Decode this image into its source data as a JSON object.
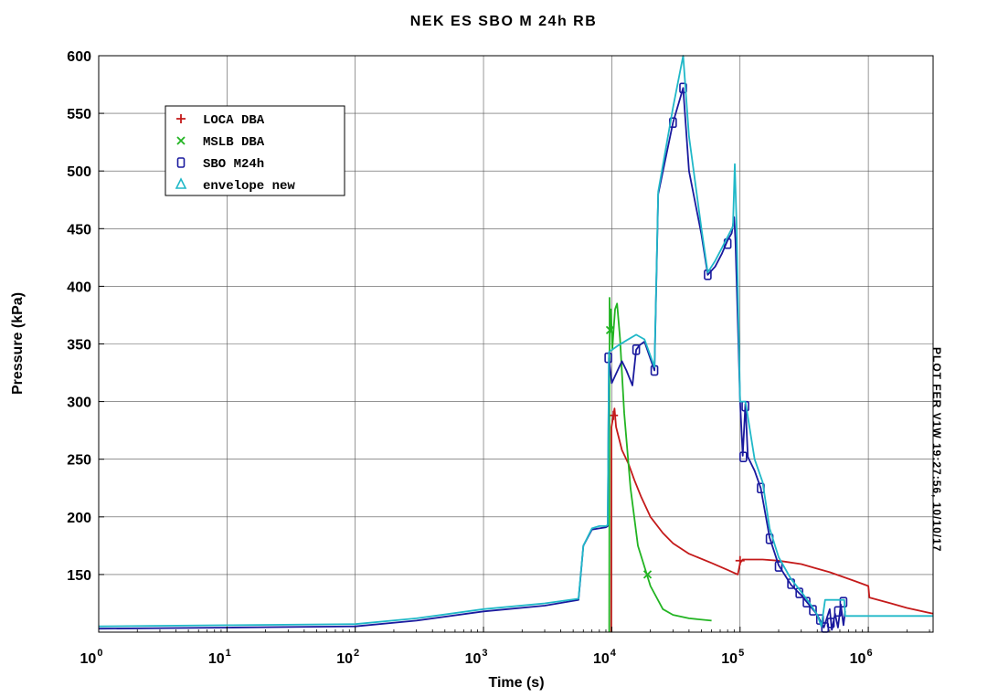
{
  "side_note": "PLOT FER V1W 19:27:56, 10/10/17",
  "chart_data": {
    "type": "line",
    "title": "NEK ES SBO M 24h RB",
    "xlabel": "Time (s)",
    "ylabel": "Pressure (kPa)",
    "xscale": "log",
    "xlim": [
      1,
      3200000
    ],
    "ylim": [
      100,
      600
    ],
    "x_tick_labels": [
      {
        "base": "10",
        "exp": "0",
        "value": 1
      },
      {
        "base": "10",
        "exp": "1",
        "value": 10
      },
      {
        "base": "10",
        "exp": "2",
        "value": 100
      },
      {
        "base": "10",
        "exp": "3",
        "value": 1000
      },
      {
        "base": "10",
        "exp": "4",
        "value": 10000
      },
      {
        "base": "10",
        "exp": "5",
        "value": 100000
      },
      {
        "base": "10",
        "exp": "6",
        "value": 1000000
      }
    ],
    "y_ticks": [
      150,
      200,
      250,
      300,
      350,
      400,
      450,
      500,
      550,
      600
    ],
    "grid": true,
    "legend_position": "top-left",
    "series": [
      {
        "name": "LOCA DBA",
        "color": "#c41a1a",
        "marker": "+",
        "points": [
          [
            9900,
            100
          ],
          [
            9950,
            278
          ],
          [
            10300,
            288
          ],
          [
            10500,
            294
          ],
          [
            10800,
            278
          ],
          [
            12000,
            258
          ],
          [
            13500,
            246
          ],
          [
            15000,
            232
          ],
          [
            17000,
            217
          ],
          [
            20000,
            200
          ],
          [
            25000,
            186
          ],
          [
            30000,
            177
          ],
          [
            40000,
            168
          ],
          [
            60000,
            160
          ],
          [
            80000,
            154
          ],
          [
            96000,
            150
          ],
          [
            100000,
            160
          ],
          [
            105000,
            163
          ],
          [
            150000,
            163
          ],
          [
            200000,
            162
          ],
          [
            300000,
            159
          ],
          [
            500000,
            152
          ],
          [
            800000,
            144
          ],
          [
            1000000,
            140
          ],
          [
            1020000,
            130
          ],
          [
            1500000,
            125
          ],
          [
            2000000,
            121
          ],
          [
            3200000,
            116
          ]
        ],
        "marker_points": [
          [
            10300,
            288
          ],
          [
            100000,
            162
          ]
        ]
      },
      {
        "name": "MSLB DBA",
        "color": "#22b422",
        "marker": "x",
        "points": [
          [
            9550,
            100
          ],
          [
            9620,
            390
          ],
          [
            9700,
            360
          ],
          [
            9850,
            380
          ],
          [
            10100,
            345
          ],
          [
            10300,
            360
          ],
          [
            10600,
            380
          ],
          [
            11000,
            385
          ],
          [
            11600,
            355
          ],
          [
            12500,
            290
          ],
          [
            14000,
            225
          ],
          [
            16000,
            175
          ],
          [
            20000,
            140
          ],
          [
            25000,
            120
          ],
          [
            30000,
            115
          ],
          [
            40000,
            112
          ],
          [
            60000,
            110
          ]
        ],
        "marker_points": [
          [
            9700,
            362
          ],
          [
            19000,
            150
          ]
        ]
      },
      {
        "name": "SBO M24h",
        "color": "#1a1a9e",
        "marker": "square",
        "points": [
          [
            1,
            103
          ],
          [
            10,
            104
          ],
          [
            100,
            105
          ],
          [
            300,
            110
          ],
          [
            1000,
            118
          ],
          [
            3000,
            123
          ],
          [
            5500,
            128
          ],
          [
            6000,
            175
          ],
          [
            7000,
            189
          ],
          [
            8000,
            190
          ],
          [
            9000,
            191
          ],
          [
            9300,
            192
          ],
          [
            9500,
            338
          ],
          [
            10000,
            316
          ],
          [
            11000,
            326
          ],
          [
            12000,
            335
          ],
          [
            13000,
            327
          ],
          [
            14500,
            314
          ],
          [
            15500,
            345
          ],
          [
            16500,
            349
          ],
          [
            18000,
            352
          ],
          [
            21500,
            327
          ],
          [
            23000,
            480
          ],
          [
            30000,
            542
          ],
          [
            36000,
            572
          ],
          [
            40000,
            500
          ],
          [
            50000,
            445
          ],
          [
            56000,
            410
          ],
          [
            64000,
            417
          ],
          [
            72000,
            428
          ],
          [
            80000,
            440
          ],
          [
            86000,
            446
          ],
          [
            90000,
            460
          ],
          [
            92000,
            440
          ],
          [
            100000,
            300
          ],
          [
            105000,
            253
          ],
          [
            110000,
            298
          ],
          [
            115000,
            252
          ],
          [
            130000,
            240
          ],
          [
            145000,
            225
          ],
          [
            170000,
            182
          ],
          [
            200000,
            158
          ],
          [
            250000,
            141
          ],
          [
            300000,
            132
          ],
          [
            350000,
            123
          ],
          [
            400000,
            115
          ],
          [
            450000,
            104
          ],
          [
            500000,
            120
          ],
          [
            520000,
            102
          ],
          [
            550000,
            116
          ],
          [
            580000,
            104
          ],
          [
            610000,
            124
          ],
          [
            640000,
            106
          ],
          [
            660000,
            118
          ]
        ],
        "marker_points": [
          [
            9400,
            338
          ],
          [
            15500,
            345
          ],
          [
            21500,
            327
          ],
          [
            30000,
            542
          ],
          [
            36000,
            572
          ],
          [
            56000,
            410
          ],
          [
            80000,
            437
          ],
          [
            106000,
            252
          ],
          [
            110000,
            296
          ],
          [
            145000,
            225
          ],
          [
            170000,
            181
          ],
          [
            200000,
            157
          ],
          [
            250000,
            142
          ],
          [
            290000,
            134
          ],
          [
            330000,
            126
          ],
          [
            370000,
            119
          ],
          [
            420000,
            111
          ],
          [
            460000,
            104
          ],
          [
            510000,
            108
          ],
          [
            580000,
            118
          ],
          [
            640000,
            126
          ]
        ]
      },
      {
        "name": "envelope new",
        "color": "#20b8c8",
        "marker": "triangle",
        "points": [
          [
            1,
            105
          ],
          [
            10,
            106
          ],
          [
            100,
            107
          ],
          [
            300,
            112
          ],
          [
            1000,
            120
          ],
          [
            3000,
            125
          ],
          [
            5500,
            129
          ],
          [
            6000,
            175
          ],
          [
            7000,
            190
          ],
          [
            8000,
            192
          ],
          [
            9000,
            192
          ],
          [
            9300,
            193
          ],
          [
            9500,
            343
          ],
          [
            11000,
            348
          ],
          [
            13000,
            353
          ],
          [
            15500,
            358
          ],
          [
            18000,
            354
          ],
          [
            21500,
            330
          ],
          [
            23000,
            482
          ],
          [
            30000,
            555
          ],
          [
            36000,
            600
          ],
          [
            40000,
            530
          ],
          [
            50000,
            450
          ],
          [
            56000,
            412
          ],
          [
            64000,
            422
          ],
          [
            72000,
            433
          ],
          [
            80000,
            443
          ],
          [
            88000,
            452
          ],
          [
            91000,
            506
          ],
          [
            94000,
            452
          ],
          [
            100000,
            300
          ],
          [
            110000,
            300
          ],
          [
            130000,
            250
          ],
          [
            150000,
            230
          ],
          [
            170000,
            190
          ],
          [
            200000,
            165
          ],
          [
            250000,
            146
          ],
          [
            300000,
            135
          ],
          [
            350000,
            125
          ],
          [
            400000,
            115
          ],
          [
            430000,
            105
          ],
          [
            460000,
            128
          ],
          [
            650000,
            128
          ],
          [
            660000,
            114
          ],
          [
            3200000,
            114
          ]
        ],
        "marker_points": []
      }
    ]
  }
}
